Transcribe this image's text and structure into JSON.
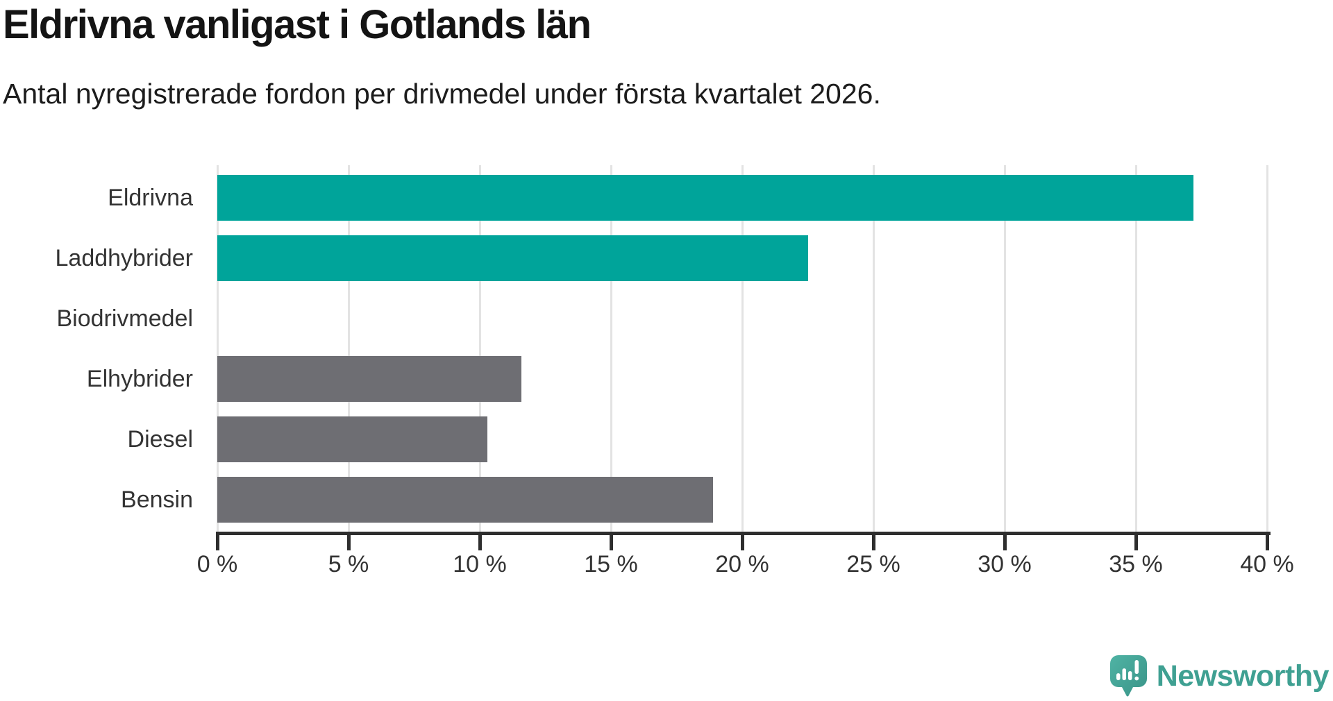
{
  "header": {
    "title": "Eldrivna vanligast i Gotlands län",
    "subtitle": "Antal nyregistrerade fordon per drivmedel under första kvartalet 2026."
  },
  "chart_data": {
    "type": "bar",
    "orientation": "horizontal",
    "title": "Eldrivna vanligast i Gotlands län",
    "subtitle": "Antal nyregistrerade fordon per drivmedel under första kvartalet 2026.",
    "categories": [
      "Eldrivna",
      "Laddhybrider",
      "Biodrivmedel",
      "Elhybrider",
      "Diesel",
      "Bensin"
    ],
    "values": [
      37.2,
      22.5,
      0,
      11.6,
      10.3,
      18.9
    ],
    "bar_colors": [
      "#00a49a",
      "#00a49a",
      "#00a49a",
      "#6e6e73",
      "#6e6e73",
      "#6e6e73"
    ],
    "unit": "%",
    "xlabel": "",
    "ylabel": "",
    "xlim": [
      0,
      40
    ],
    "x_ticks": [
      0,
      5,
      10,
      15,
      20,
      25,
      30,
      35,
      40
    ],
    "x_tick_labels": [
      "0 %",
      "5 %",
      "10 %",
      "15 %",
      "20 %",
      "25 %",
      "30 %",
      "35 %",
      "40 %"
    ],
    "grid": "vertical-only",
    "legend": "none"
  },
  "colors": {
    "highlight_bar": "#00a49a",
    "default_bar": "#6e6e73",
    "gridline": "#e3e3e3",
    "axis": "#2e2e2e",
    "title_text": "#141414",
    "label_text": "#333333",
    "logo_teal": "#3fa092"
  },
  "footer": {
    "brand": "Newsworthy"
  }
}
